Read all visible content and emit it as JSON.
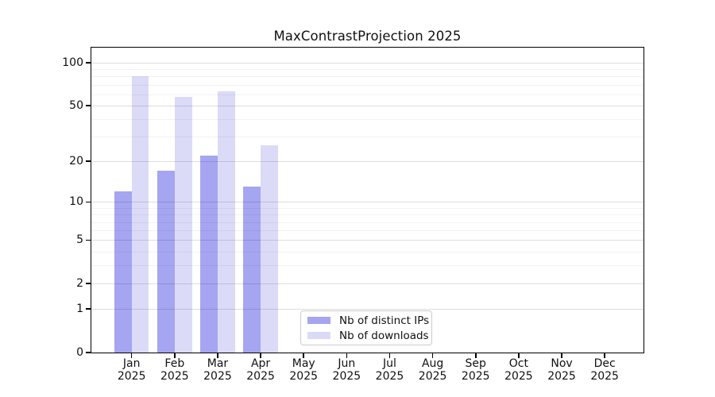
{
  "title": "MaxContrastProjection 2025",
  "year_label": "2025",
  "legend": {
    "items": [
      {
        "label": "Nb of distinct IPs",
        "color": "#a5a5f1"
      },
      {
        "label": "Nb of downloads",
        "color": "#dbdbf8"
      }
    ]
  },
  "chart_data": {
    "type": "bar",
    "title": "MaxContrastProjection 2025",
    "categories": [
      "Jan 2025",
      "Feb 2025",
      "Mar 2025",
      "Apr 2025",
      "May 2025",
      "Jun 2025",
      "Jul 2025",
      "Aug 2025",
      "Sep 2025",
      "Oct 2025",
      "Nov 2025",
      "Dec 2025"
    ],
    "months": [
      "Jan",
      "Feb",
      "Mar",
      "Apr",
      "May",
      "Jun",
      "Jul",
      "Aug",
      "Sep",
      "Oct",
      "Nov",
      "Dec"
    ],
    "year": "2025",
    "series": [
      {
        "name": "Nb of distinct IPs",
        "color": "#a5a5f1",
        "values": [
          12,
          17,
          22,
          13,
          0,
          0,
          0,
          0,
          0,
          0,
          0,
          0
        ]
      },
      {
        "name": "Nb of downloads",
        "color": "#dbdbf8",
        "values": [
          80,
          58,
          63,
          26,
          0,
          0,
          0,
          0,
          0,
          0,
          0,
          0
        ]
      }
    ],
    "xlabel": "",
    "ylabel": "",
    "y_axis": {
      "scale": "log10(1+y)",
      "major_ticks": [
        0,
        1,
        2,
        5,
        10,
        20,
        50,
        100
      ],
      "minor_gridlines": [
        3,
        4,
        6,
        7,
        8,
        9,
        30,
        40,
        60,
        70,
        80,
        90
      ],
      "ylim": [
        0,
        128
      ]
    },
    "grid": "horizontal",
    "legend_position": "lower center inside"
  }
}
